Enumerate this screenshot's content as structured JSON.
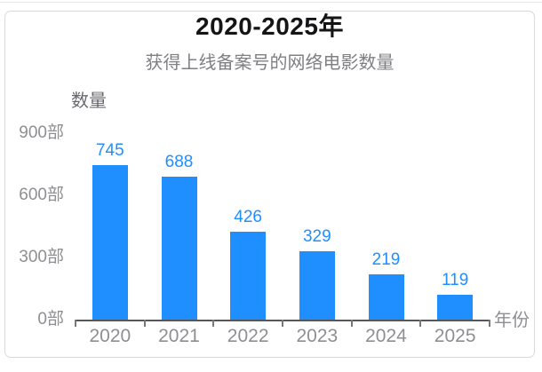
{
  "chart_data": {
    "type": "bar",
    "title": "2020-2025年",
    "subtitle": "获得上线备案号的网络电影数量",
    "categories": [
      "2020",
      "2021",
      "2022",
      "2023",
      "2024",
      "2025"
    ],
    "values": [
      745,
      688,
      426,
      329,
      219,
      119
    ],
    "xlabel": "年份",
    "ylabel": "数量",
    "unit": "部",
    "y_ticks": [
      {
        "label": "900部",
        "value": 900
      },
      {
        "label": "600部",
        "value": 600
      },
      {
        "label": "300部",
        "value": 300
      },
      {
        "label": "0部",
        "value": 0
      }
    ],
    "ylim": [
      0,
      900
    ],
    "grid": false,
    "legend": null,
    "value_labels_shown": true
  },
  "colors": {
    "bar": "#1f8fff",
    "value_label": "#1f8fff",
    "title": "#151517",
    "subtitle": "#7f7f84",
    "axis_text": "#8e8e93",
    "axis_title": "#68686d",
    "axis_line": "#55555a",
    "card_border": "#d9d9dc",
    "background": "#ffffff"
  }
}
